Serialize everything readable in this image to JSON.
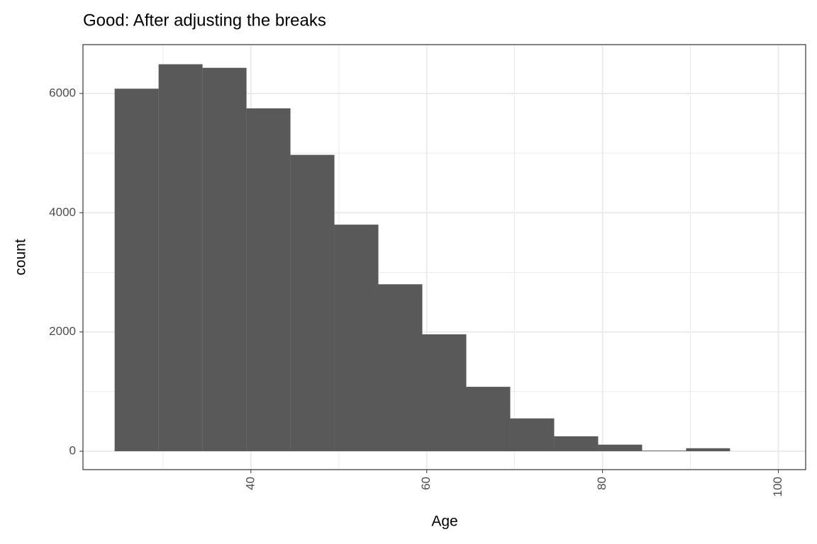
{
  "chart_data": {
    "type": "histogram",
    "title": "Good: After adjusting the breaks",
    "x_label": "Age",
    "y_label": "count",
    "bins": [
      24.5,
      29.5,
      34.5,
      39.5,
      44.5,
      49.5,
      54.5,
      59.5,
      64.5,
      69.5,
      74.5,
      79.5,
      84.5,
      89.5,
      94.5
    ],
    "values": [
      6080,
      6490,
      6430,
      5750,
      4970,
      3800,
      2800,
      1960,
      1080,
      550,
      250,
      110,
      10,
      50
    ],
    "color": "#595959",
    "xlim": [
      20.9,
      103.1
    ],
    "ylim": [
      -309,
      6819
    ],
    "xticks": [
      40,
      60,
      80,
      100
    ],
    "yticks": [
      0,
      2000,
      4000,
      6000
    ],
    "x_minor_ticks": [
      30,
      50,
      70,
      90
    ],
    "y_minor_ticks": [
      1000,
      3000,
      5000
    ],
    "grid": true
  }
}
